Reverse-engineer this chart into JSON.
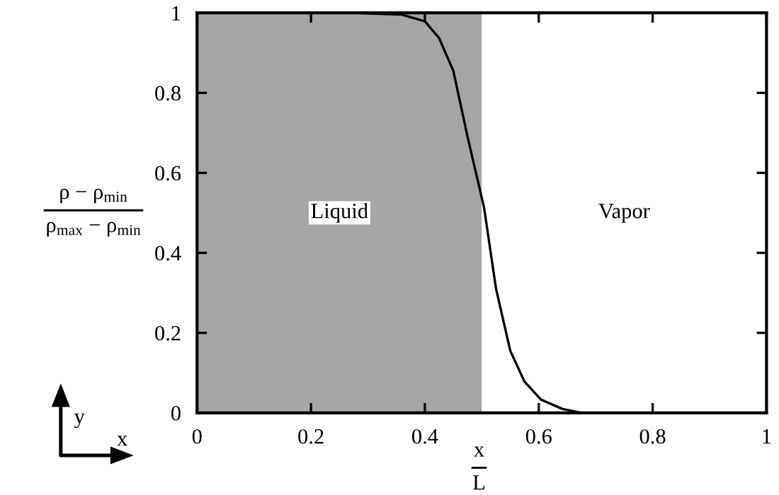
{
  "chart_data": {
    "type": "line",
    "xlabel": "x\nL",
    "ylabel": "ρ − ρ$_{min}$\nρ$_{max}$ − ρ$_{min}$",
    "series": [
      {
        "color": "#000000",
        "x": [
          0.276,
          0.358,
          0.4,
          0.425,
          0.45,
          0.475,
          0.504,
          0.525,
          0.55,
          0.575,
          0.604,
          0.641,
          0.674
        ],
        "values": [
          1.0,
          0.996,
          0.979,
          0.937,
          0.855,
          0.69,
          0.513,
          0.31,
          0.155,
          0.078,
          0.033,
          0.01,
          0.0
        ]
      }
    ],
    "bands": [
      {
        "axis": "x",
        "from": 0,
        "to": 0.5,
        "label": "Liquid",
        "color": "#a6a6a6"
      },
      {
        "axis": "x",
        "from": 0.5,
        "to": 1,
        "label": "Vapor",
        "color": "#ffffff"
      }
    ],
    "annotations": [
      "y",
      "x"
    ],
    "xlim": [
      0,
      1
    ],
    "ylim": [
      0,
      1
    ],
    "xticks": [
      0,
      0.2,
      0.4,
      0.6,
      0.8,
      1
    ],
    "yticks": [
      0,
      0.2,
      0.4,
      0.6,
      0.8,
      1
    ],
    "grid": false,
    "legend": false,
    "marker": "none",
    "line_style": "solid"
  }
}
